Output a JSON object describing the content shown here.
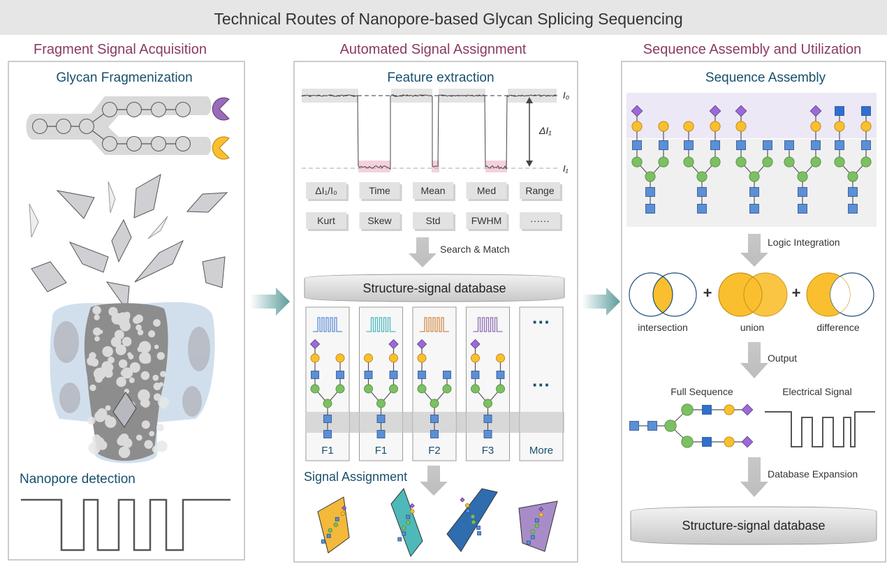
{
  "title": "Technical Routes of Nanopore-based Glycan Splicing Sequencing",
  "columns": {
    "left": {
      "header": "Fragment Signal Acquisition",
      "subtitle": "Glycan Fragmenization",
      "detection_label": "Nanopore detection"
    },
    "middle": {
      "header": "Automated Signal Assignment",
      "subtitle": "Feature extraction",
      "trace_labels": {
        "i0": "I₀",
        "i1": "I₁",
        "delta": "ΔI₁"
      },
      "features": [
        "ΔI₁/I₀",
        "Time",
        "Mean",
        "Med",
        "Range",
        "Kurt",
        "Skew",
        "Std",
        "FWHM",
        "······"
      ],
      "search_label": "Search & Match",
      "database_label": "Structure-signal database",
      "cards": [
        {
          "label": "F1",
          "signal_color": "#5b8fd6"
        },
        {
          "label": "F1",
          "signal_color": "#4fb8c0"
        },
        {
          "label": "F2",
          "signal_color": "#d08a4a"
        },
        {
          "label": "F3",
          "signal_color": "#8e72b8"
        },
        {
          "label": "More",
          "dots": "···"
        }
      ],
      "assignment_label": "Signal Assignment",
      "fragment_colors": [
        "#f2b93b",
        "#4fb8b8",
        "#2f6db0",
        "#a88cc8"
      ]
    },
    "right": {
      "header": "Sequence Assembly and Utilization",
      "subtitle": "Sequence Assembly",
      "logic_label": "Logic Integration",
      "venn": [
        {
          "label": "intersection",
          "operator": "+"
        },
        {
          "label": "union",
          "operator": "+"
        },
        {
          "label": "difference"
        }
      ],
      "output_label": "Output",
      "full_sequence_label": "Full Sequence",
      "electrical_signal_label": "Electrical Signal",
      "expansion_label": "Database Expansion",
      "database_label": "Structure-signal database"
    }
  },
  "colors": {
    "header": "#8b3a62",
    "subtitle": "#17506e",
    "galactose": "#f9bf2e",
    "glcnac": "#5b8fd6",
    "mannose": "#7dbf63",
    "sialic": "#9b6ad6",
    "venn_fill": "#f9bf2e",
    "arrow": "#6fa8a8"
  }
}
